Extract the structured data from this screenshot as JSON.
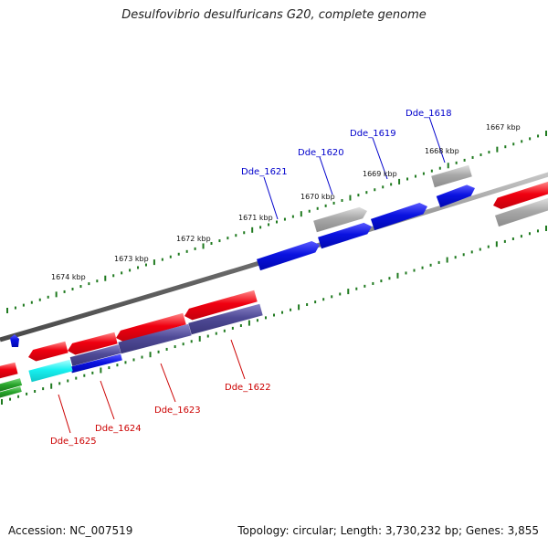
{
  "title": "Desulfovibrio desulfuricans G20, complete genome",
  "footer": {
    "accession": "Accession: NC_007519",
    "summary": "Topology: circular; Length: 3,730,232 bp; Genes: 3,855"
  },
  "colors": {
    "backbone": "#7a7a7a",
    "ticks": "#1f7a1f",
    "label_upper": "#0000cc",
    "label_lower": "#cc0000",
    "red": "#e8000f",
    "blue": "#0a12e0",
    "grey": "#a8a8a8",
    "slate": "#4f4a96",
    "cyan": "#18f0f0",
    "green": "#27a32a"
  },
  "ticks": [
    {
      "label": "1667 kbp"
    },
    {
      "label": "1668 kbp"
    },
    {
      "label": "1669 kbp"
    },
    {
      "label": "1670 kbp"
    },
    {
      "label": "1671 kbp"
    },
    {
      "label": "1672 kbp"
    },
    {
      "label": "1673 kbp"
    },
    {
      "label": "1674 kbp"
    }
  ],
  "genes": [
    {
      "label": "Dde_1618",
      "strand": "upper"
    },
    {
      "label": "Dde_1619",
      "strand": "upper"
    },
    {
      "label": "Dde_1620",
      "strand": "upper"
    },
    {
      "label": "Dde_1621",
      "strand": "upper"
    },
    {
      "label": "Dde_1622",
      "strand": "lower"
    },
    {
      "label": "Dde_1623",
      "strand": "lower"
    },
    {
      "label": "Dde_1624",
      "strand": "lower"
    },
    {
      "label": "Dde_1625",
      "strand": "lower"
    }
  ]
}
